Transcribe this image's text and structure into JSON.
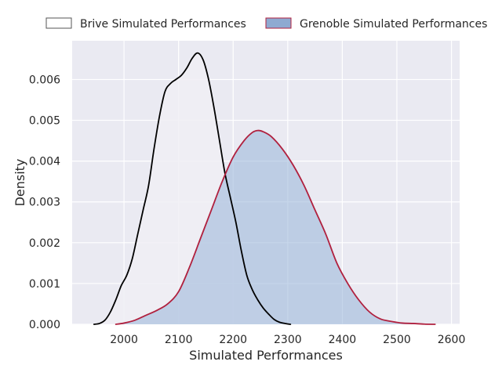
{
  "chart_data": {
    "type": "area",
    "xlabel": "Simulated Performances",
    "ylabel": "Density",
    "xlim": [
      1905,
      2615
    ],
    "ylim": [
      0,
      0.00695
    ],
    "x_ticks": [
      2000,
      2100,
      2200,
      2300,
      2400,
      2500,
      2600
    ],
    "y_ticks": [
      0.0,
      0.001,
      0.002,
      0.003,
      0.004,
      0.005,
      0.006
    ],
    "y_tick_labels": [
      "0.000",
      "0.001",
      "0.002",
      "0.003",
      "0.004",
      "0.005",
      "0.006"
    ],
    "grid": true,
    "legend_position": "top, outside plot",
    "series": [
      {
        "name": "Brive Simulated Performances",
        "line_color": "#000000",
        "fill_color": "#f0eef5",
        "fill_opacity": 0.85,
        "points": [
          [
            1945,
            0.0
          ],
          [
            1955,
            2e-05
          ],
          [
            1965,
            0.0001
          ],
          [
            1975,
            0.0003
          ],
          [
            1985,
            0.0006
          ],
          [
            1995,
            0.00095
          ],
          [
            2005,
            0.0012
          ],
          [
            2015,
            0.0016
          ],
          [
            2025,
            0.0022
          ],
          [
            2035,
            0.0028
          ],
          [
            2045,
            0.0034
          ],
          [
            2055,
            0.0043
          ],
          [
            2065,
            0.0051
          ],
          [
            2075,
            0.0057
          ],
          [
            2085,
            0.0059
          ],
          [
            2095,
            0.006
          ],
          [
            2105,
            0.0061
          ],
          [
            2115,
            0.00628
          ],
          [
            2125,
            0.00652
          ],
          [
            2135,
            0.00665
          ],
          [
            2145,
            0.00648
          ],
          [
            2155,
            0.006
          ],
          [
            2165,
            0.0053
          ],
          [
            2175,
            0.0045
          ],
          [
            2185,
            0.0037
          ],
          [
            2195,
            0.0031
          ],
          [
            2205,
            0.0025
          ],
          [
            2215,
            0.0018
          ],
          [
            2225,
            0.0012
          ],
          [
            2235,
            0.00085
          ],
          [
            2245,
            0.0006
          ],
          [
            2255,
            0.0004
          ],
          [
            2265,
            0.00025
          ],
          [
            2275,
            0.00012
          ],
          [
            2285,
            5e-05
          ],
          [
            2295,
            2e-05
          ],
          [
            2305,
            0.0
          ]
        ]
      },
      {
        "name": "Grenoble Simulated Performances",
        "line_color": "#b0203e",
        "fill_color": "#98b4d8",
        "fill_opacity": 0.55,
        "points": [
          [
            1985,
            0.0
          ],
          [
            2000,
            3e-05
          ],
          [
            2020,
            0.0001
          ],
          [
            2040,
            0.00022
          ],
          [
            2060,
            0.00034
          ],
          [
            2080,
            0.0005
          ],
          [
            2100,
            0.0008
          ],
          [
            2120,
            0.0014
          ],
          [
            2140,
            0.0021
          ],
          [
            2160,
            0.0028
          ],
          [
            2180,
            0.0035
          ],
          [
            2200,
            0.0041
          ],
          [
            2220,
            0.0045
          ],
          [
            2235,
            0.0047
          ],
          [
            2245,
            0.00475
          ],
          [
            2255,
            0.00472
          ],
          [
            2270,
            0.0046
          ],
          [
            2290,
            0.0043
          ],
          [
            2310,
            0.0039
          ],
          [
            2330,
            0.0034
          ],
          [
            2350,
            0.0028
          ],
          [
            2370,
            0.0022
          ],
          [
            2390,
            0.0015
          ],
          [
            2410,
            0.001
          ],
          [
            2430,
            0.0006
          ],
          [
            2450,
            0.0003
          ],
          [
            2470,
            0.00013
          ],
          [
            2490,
            7e-05
          ],
          [
            2510,
            3e-05
          ],
          [
            2530,
            2e-05
          ],
          [
            2550,
            5e-06
          ],
          [
            2570,
            0.0
          ]
        ]
      }
    ]
  }
}
